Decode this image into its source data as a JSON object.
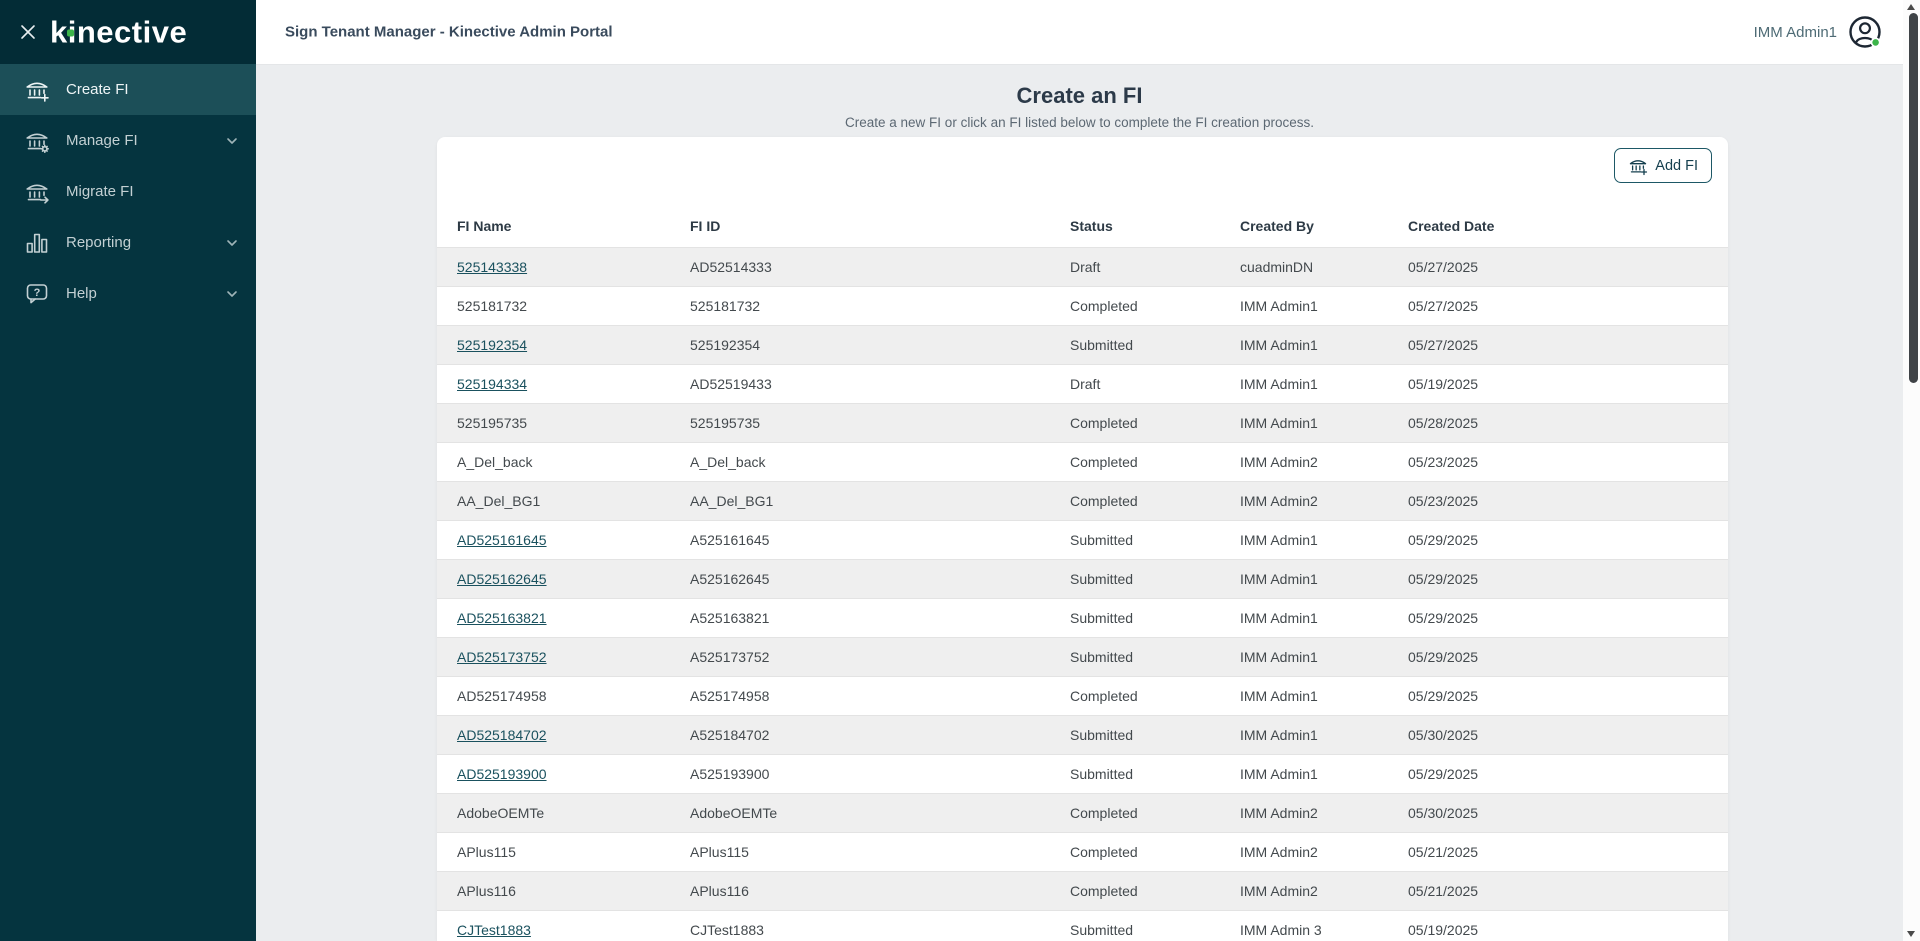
{
  "brand": {
    "logo_text": "kinective",
    "accent_green": "#3cb54a"
  },
  "sidebar": {
    "items": [
      {
        "label": "Create FI",
        "icon": "bank-plus-icon",
        "active": true,
        "chevron": false
      },
      {
        "label": "Manage FI",
        "icon": "bank-gear-icon",
        "active": false,
        "chevron": true
      },
      {
        "label": "Migrate FI",
        "icon": "bank-arrow-icon",
        "active": false,
        "chevron": false
      },
      {
        "label": "Reporting",
        "icon": "bar-chart-icon",
        "active": false,
        "chevron": true
      },
      {
        "label": "Help",
        "icon": "help-bubble-icon",
        "active": false,
        "chevron": true
      }
    ]
  },
  "topbar": {
    "title": "Sign Tenant Manager - Kinective Admin Portal",
    "user_name": "IMM Admin1"
  },
  "page": {
    "title": "Create an FI",
    "subtitle": "Create a new FI or click an FI listed below to complete the FI creation process.",
    "add_button_label": "Add FI"
  },
  "table": {
    "columns": [
      "FI Name",
      "FI ID",
      "Status",
      "Created By",
      "Created Date"
    ],
    "partial_row_visible": true,
    "rows": [
      {
        "fi_name": "525143338",
        "link": true,
        "fi_id": "AD52514333",
        "status": "Draft",
        "created_by": "cuadminDN",
        "created_date": "05/27/2025"
      },
      {
        "fi_name": "525181732",
        "link": false,
        "fi_id": "525181732",
        "status": "Completed",
        "created_by": "IMM Admin1",
        "created_date": "05/27/2025"
      },
      {
        "fi_name": "525192354",
        "link": true,
        "fi_id": "525192354",
        "status": "Submitted",
        "created_by": "IMM Admin1",
        "created_date": "05/27/2025"
      },
      {
        "fi_name": "525194334",
        "link": true,
        "fi_id": "AD52519433",
        "status": "Draft",
        "created_by": "IMM Admin1",
        "created_date": "05/19/2025"
      },
      {
        "fi_name": "525195735",
        "link": false,
        "fi_id": "525195735",
        "status": "Completed",
        "created_by": "IMM Admin1",
        "created_date": "05/28/2025"
      },
      {
        "fi_name": "A_Del_back",
        "link": false,
        "fi_id": "A_Del_back",
        "status": "Completed",
        "created_by": "IMM Admin2",
        "created_date": "05/23/2025"
      },
      {
        "fi_name": "AA_Del_BG1",
        "link": false,
        "fi_id": "AA_Del_BG1",
        "status": "Completed",
        "created_by": "IMM Admin2",
        "created_date": "05/23/2025"
      },
      {
        "fi_name": "AD525161645",
        "link": true,
        "fi_id": "A525161645",
        "status": "Submitted",
        "created_by": "IMM Admin1",
        "created_date": "05/29/2025"
      },
      {
        "fi_name": "AD525162645",
        "link": true,
        "fi_id": "A525162645",
        "status": "Submitted",
        "created_by": "IMM Admin1",
        "created_date": "05/29/2025"
      },
      {
        "fi_name": "AD525163821",
        "link": true,
        "fi_id": "A525163821",
        "status": "Submitted",
        "created_by": "IMM Admin1",
        "created_date": "05/29/2025"
      },
      {
        "fi_name": "AD525173752",
        "link": true,
        "fi_id": "A525173752",
        "status": "Submitted",
        "created_by": "IMM Admin1",
        "created_date": "05/29/2025"
      },
      {
        "fi_name": "AD525174958",
        "link": false,
        "fi_id": "A525174958",
        "status": "Completed",
        "created_by": "IMM Admin1",
        "created_date": "05/29/2025"
      },
      {
        "fi_name": "AD525184702",
        "link": true,
        "fi_id": "A525184702",
        "status": "Submitted",
        "created_by": "IMM Admin1",
        "created_date": "05/30/2025"
      },
      {
        "fi_name": "AD525193900",
        "link": true,
        "fi_id": "A525193900",
        "status": "Submitted",
        "created_by": "IMM Admin1",
        "created_date": "05/29/2025"
      },
      {
        "fi_name": "AdobeOEMTe",
        "link": false,
        "fi_id": "AdobeOEMTe",
        "status": "Completed",
        "created_by": "IMM Admin2",
        "created_date": "05/30/2025"
      },
      {
        "fi_name": "APlus115",
        "link": false,
        "fi_id": "APlus115",
        "status": "Completed",
        "created_by": "IMM Admin2",
        "created_date": "05/21/2025"
      },
      {
        "fi_name": "APlus116",
        "link": false,
        "fi_id": "APlus116",
        "status": "Completed",
        "created_by": "IMM Admin2",
        "created_date": "05/21/2025"
      },
      {
        "fi_name": "CJTest1883",
        "link": true,
        "fi_id": "CJTest1883",
        "status": "Submitted",
        "created_by": "IMM Admin 3",
        "created_date": "05/19/2025"
      }
    ]
  },
  "colors": {
    "sidebar_bg": "#05343f",
    "sidebar_logo_bg": "#032c36",
    "sidebar_active_bg": "#1c4f58",
    "link": "#1a515e",
    "alt_row_bg": "#efefef",
    "button_border": "#1d5866",
    "status_green_dot": "#3cb54a",
    "heading": "#2c3a49"
  }
}
